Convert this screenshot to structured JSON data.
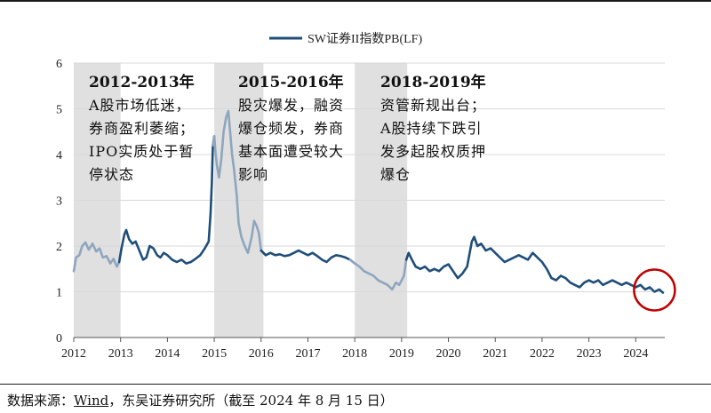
{
  "chart_data": {
    "type": "line",
    "legend": {
      "label": "SW证券II指数PB(LF)",
      "placement": "top-center"
    },
    "xlim": [
      2012,
      2024.62
    ],
    "ylim": [
      0,
      6
    ],
    "y_ticks": [
      0,
      1,
      2,
      3,
      4,
      5,
      6
    ],
    "x_ticks": [
      2012,
      2013,
      2014,
      2015,
      2016,
      2017,
      2018,
      2019,
      2020,
      2021,
      2022,
      2023,
      2024
    ],
    "grid": "horizontal",
    "series": [
      {
        "points": [
          [
            2012.0,
            1.45
          ],
          [
            2012.05,
            1.75
          ],
          [
            2012.12,
            1.8
          ],
          [
            2012.18,
            2.0
          ],
          [
            2012.25,
            2.08
          ],
          [
            2012.32,
            1.92
          ],
          [
            2012.4,
            2.05
          ],
          [
            2012.48,
            1.88
          ],
          [
            2012.55,
            1.95
          ],
          [
            2012.62,
            1.75
          ],
          [
            2012.7,
            1.78
          ],
          [
            2012.78,
            1.62
          ],
          [
            2012.85,
            1.72
          ],
          [
            2012.92,
            1.55
          ],
          [
            2012.97,
            1.65
          ],
          [
            2013.02,
            1.95
          ],
          [
            2013.08,
            2.25
          ],
          [
            2013.12,
            2.35
          ],
          [
            2013.18,
            2.15
          ],
          [
            2013.25,
            2.05
          ],
          [
            2013.32,
            2.1
          ],
          [
            2013.4,
            1.9
          ],
          [
            2013.48,
            1.7
          ],
          [
            2013.55,
            1.75
          ],
          [
            2013.62,
            2.0
          ],
          [
            2013.7,
            1.95
          ],
          [
            2013.78,
            1.8
          ],
          [
            2013.85,
            1.75
          ],
          [
            2013.92,
            1.85
          ],
          [
            2014.0,
            1.8
          ],
          [
            2014.1,
            1.7
          ],
          [
            2014.2,
            1.65
          ],
          [
            2014.3,
            1.7
          ],
          [
            2014.4,
            1.62
          ],
          [
            2014.5,
            1.65
          ],
          [
            2014.6,
            1.72
          ],
          [
            2014.7,
            1.8
          ],
          [
            2014.8,
            1.95
          ],
          [
            2014.88,
            2.1
          ],
          [
            2014.92,
            2.7
          ],
          [
            2014.95,
            3.4
          ],
          [
            2014.97,
            4.2
          ],
          [
            2015.0,
            4.4
          ],
          [
            2015.03,
            4.0
          ],
          [
            2015.06,
            3.75
          ],
          [
            2015.1,
            3.5
          ],
          [
            2015.15,
            3.9
          ],
          [
            2015.2,
            4.5
          ],
          [
            2015.25,
            4.8
          ],
          [
            2015.3,
            4.95
          ],
          [
            2015.33,
            4.6
          ],
          [
            2015.38,
            4.0
          ],
          [
            2015.42,
            3.7
          ],
          [
            2015.48,
            3.1
          ],
          [
            2015.52,
            2.5
          ],
          [
            2015.58,
            2.2
          ],
          [
            2015.65,
            2.0
          ],
          [
            2015.72,
            1.85
          ],
          [
            2015.8,
            2.2
          ],
          [
            2015.85,
            2.55
          ],
          [
            2015.9,
            2.45
          ],
          [
            2015.95,
            2.3
          ],
          [
            2016.0,
            1.9
          ],
          [
            2016.1,
            1.8
          ],
          [
            2016.2,
            1.85
          ],
          [
            2016.3,
            1.8
          ],
          [
            2016.4,
            1.82
          ],
          [
            2016.5,
            1.78
          ],
          [
            2016.6,
            1.8
          ],
          [
            2016.7,
            1.85
          ],
          [
            2016.8,
            1.9
          ],
          [
            2016.9,
            1.85
          ],
          [
            2017.0,
            1.8
          ],
          [
            2017.1,
            1.85
          ],
          [
            2017.2,
            1.78
          ],
          [
            2017.3,
            1.7
          ],
          [
            2017.4,
            1.65
          ],
          [
            2017.5,
            1.75
          ],
          [
            2017.6,
            1.8
          ],
          [
            2017.7,
            1.78
          ],
          [
            2017.8,
            1.75
          ],
          [
            2017.9,
            1.7
          ],
          [
            2018.0,
            1.62
          ],
          [
            2018.1,
            1.55
          ],
          [
            2018.2,
            1.45
          ],
          [
            2018.3,
            1.4
          ],
          [
            2018.4,
            1.35
          ],
          [
            2018.5,
            1.25
          ],
          [
            2018.6,
            1.2
          ],
          [
            2018.7,
            1.15
          ],
          [
            2018.8,
            1.05
          ],
          [
            2018.88,
            1.2
          ],
          [
            2018.95,
            1.15
          ],
          [
            2019.05,
            1.35
          ],
          [
            2019.1,
            1.7
          ],
          [
            2019.15,
            1.85
          ],
          [
            2019.22,
            1.7
          ],
          [
            2019.3,
            1.55
          ],
          [
            2019.4,
            1.5
          ],
          [
            2019.5,
            1.55
          ],
          [
            2019.6,
            1.45
          ],
          [
            2019.7,
            1.5
          ],
          [
            2019.8,
            1.45
          ],
          [
            2019.9,
            1.55
          ],
          [
            2020.0,
            1.6
          ],
          [
            2020.1,
            1.45
          ],
          [
            2020.2,
            1.3
          ],
          [
            2020.3,
            1.4
          ],
          [
            2020.4,
            1.55
          ],
          [
            2020.5,
            2.1
          ],
          [
            2020.55,
            2.2
          ],
          [
            2020.62,
            2.0
          ],
          [
            2020.7,
            2.05
          ],
          [
            2020.8,
            1.9
          ],
          [
            2020.9,
            1.95
          ],
          [
            2021.0,
            1.85
          ],
          [
            2021.1,
            1.75
          ],
          [
            2021.2,
            1.65
          ],
          [
            2021.3,
            1.7
          ],
          [
            2021.4,
            1.75
          ],
          [
            2021.5,
            1.8
          ],
          [
            2021.6,
            1.75
          ],
          [
            2021.7,
            1.7
          ],
          [
            2021.8,
            1.85
          ],
          [
            2021.9,
            1.75
          ],
          [
            2022.0,
            1.65
          ],
          [
            2022.1,
            1.5
          ],
          [
            2022.2,
            1.3
          ],
          [
            2022.3,
            1.25
          ],
          [
            2022.4,
            1.35
          ],
          [
            2022.5,
            1.3
          ],
          [
            2022.6,
            1.2
          ],
          [
            2022.7,
            1.15
          ],
          [
            2022.8,
            1.1
          ],
          [
            2022.9,
            1.2
          ],
          [
            2023.0,
            1.25
          ],
          [
            2023.1,
            1.2
          ],
          [
            2023.2,
            1.25
          ],
          [
            2023.3,
            1.15
          ],
          [
            2023.4,
            1.2
          ],
          [
            2023.5,
            1.25
          ],
          [
            2023.6,
            1.2
          ],
          [
            2023.7,
            1.15
          ],
          [
            2023.8,
            1.2
          ],
          [
            2023.9,
            1.15
          ],
          [
            2024.0,
            1.1
          ],
          [
            2024.1,
            1.15
          ],
          [
            2024.2,
            1.05
          ],
          [
            2024.3,
            1.1
          ],
          [
            2024.4,
            1.0
          ],
          [
            2024.5,
            1.05
          ],
          [
            2024.58,
            0.98
          ]
        ]
      }
    ],
    "shaded_periods": [
      {
        "from": 2012.0,
        "to": 2013.0
      },
      {
        "from": 2015.0,
        "to": 2016.05
      },
      {
        "from": 2018.0,
        "to": 2019.12
      }
    ],
    "annotations": [
      {
        "title": "2012-2013年",
        "lines": [
          "A股市场低迷，",
          "券商盈利萎缩；",
          "IPO实质处于暂",
          "停状态"
        ]
      },
      {
        "title": "2015-2016年",
        "lines": [
          "股灾爆发，融资",
          "爆仓频发，券商",
          "基本面遭受较大",
          "影响"
        ]
      },
      {
        "title": "2018-2019年",
        "lines": [
          "资管新规出台；",
          "A股持续下跌引",
          "发多起股权质押",
          "爆仓"
        ]
      }
    ],
    "highlight": {
      "shape": "circle",
      "color": "#c00000",
      "center": [
        2024.4,
        1.02
      ]
    },
    "colors": {
      "line": "#1f4e79",
      "line_faded": "#8ea6bd",
      "shade": "#e0e0e0",
      "grid": "#d9d9d9"
    }
  },
  "source": {
    "prefix": "数据来源：",
    "link": "Wind",
    "suffix": "，东吴证券研究所（截至 2024 年 8 月 15 日）"
  }
}
